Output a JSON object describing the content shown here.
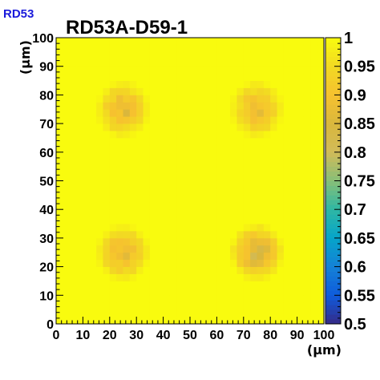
{
  "chart_data": {
    "type": "heatmap",
    "tag": "RD53",
    "title": "RD53A-D59-1",
    "xlabel": "(µm)",
    "ylabel": "(µm)",
    "xlim": [
      0,
      100
    ],
    "ylim": [
      0,
      100
    ],
    "zlim": [
      0.5,
      1
    ],
    "bin_size": 2.5,
    "background_value": 1.0,
    "x_ticks": [
      "0",
      "10",
      "20",
      "30",
      "40",
      "50",
      "60",
      "70",
      "80",
      "90",
      "100"
    ],
    "y_ticks": [
      "0",
      "10",
      "20",
      "30",
      "40",
      "50",
      "60",
      "70",
      "80",
      "90",
      "100"
    ],
    "z_ticks": [
      "0.5",
      "0.55",
      "0.6",
      "0.65",
      "0.7",
      "0.75",
      "0.8",
      "0.85",
      "0.9",
      "0.95",
      "1"
    ],
    "spots": [
      {
        "center": [
          25,
          75
        ],
        "min_value": 0.86,
        "radius": 10
      },
      {
        "center": [
          75,
          75
        ],
        "min_value": 0.87,
        "radius": 10
      },
      {
        "center": [
          25,
          25
        ],
        "min_value": 0.86,
        "radius": 10
      },
      {
        "center": [
          75,
          25
        ],
        "min_value": 0.82,
        "radius": 10
      }
    ],
    "colormap": [
      [
        0.5,
        "#352a87"
      ],
      [
        0.55,
        "#0f5cdd"
      ],
      [
        0.6,
        "#1481d6"
      ],
      [
        0.65,
        "#06a4ca"
      ],
      [
        0.7,
        "#2eb7a4"
      ],
      [
        0.75,
        "#87bf77"
      ],
      [
        0.8,
        "#d1bb59"
      ],
      [
        0.85,
        "#d9b73d"
      ],
      [
        0.9,
        "#f6c12f"
      ],
      [
        0.95,
        "#f2d923"
      ],
      [
        1.0,
        "#f9fb0e"
      ]
    ]
  }
}
